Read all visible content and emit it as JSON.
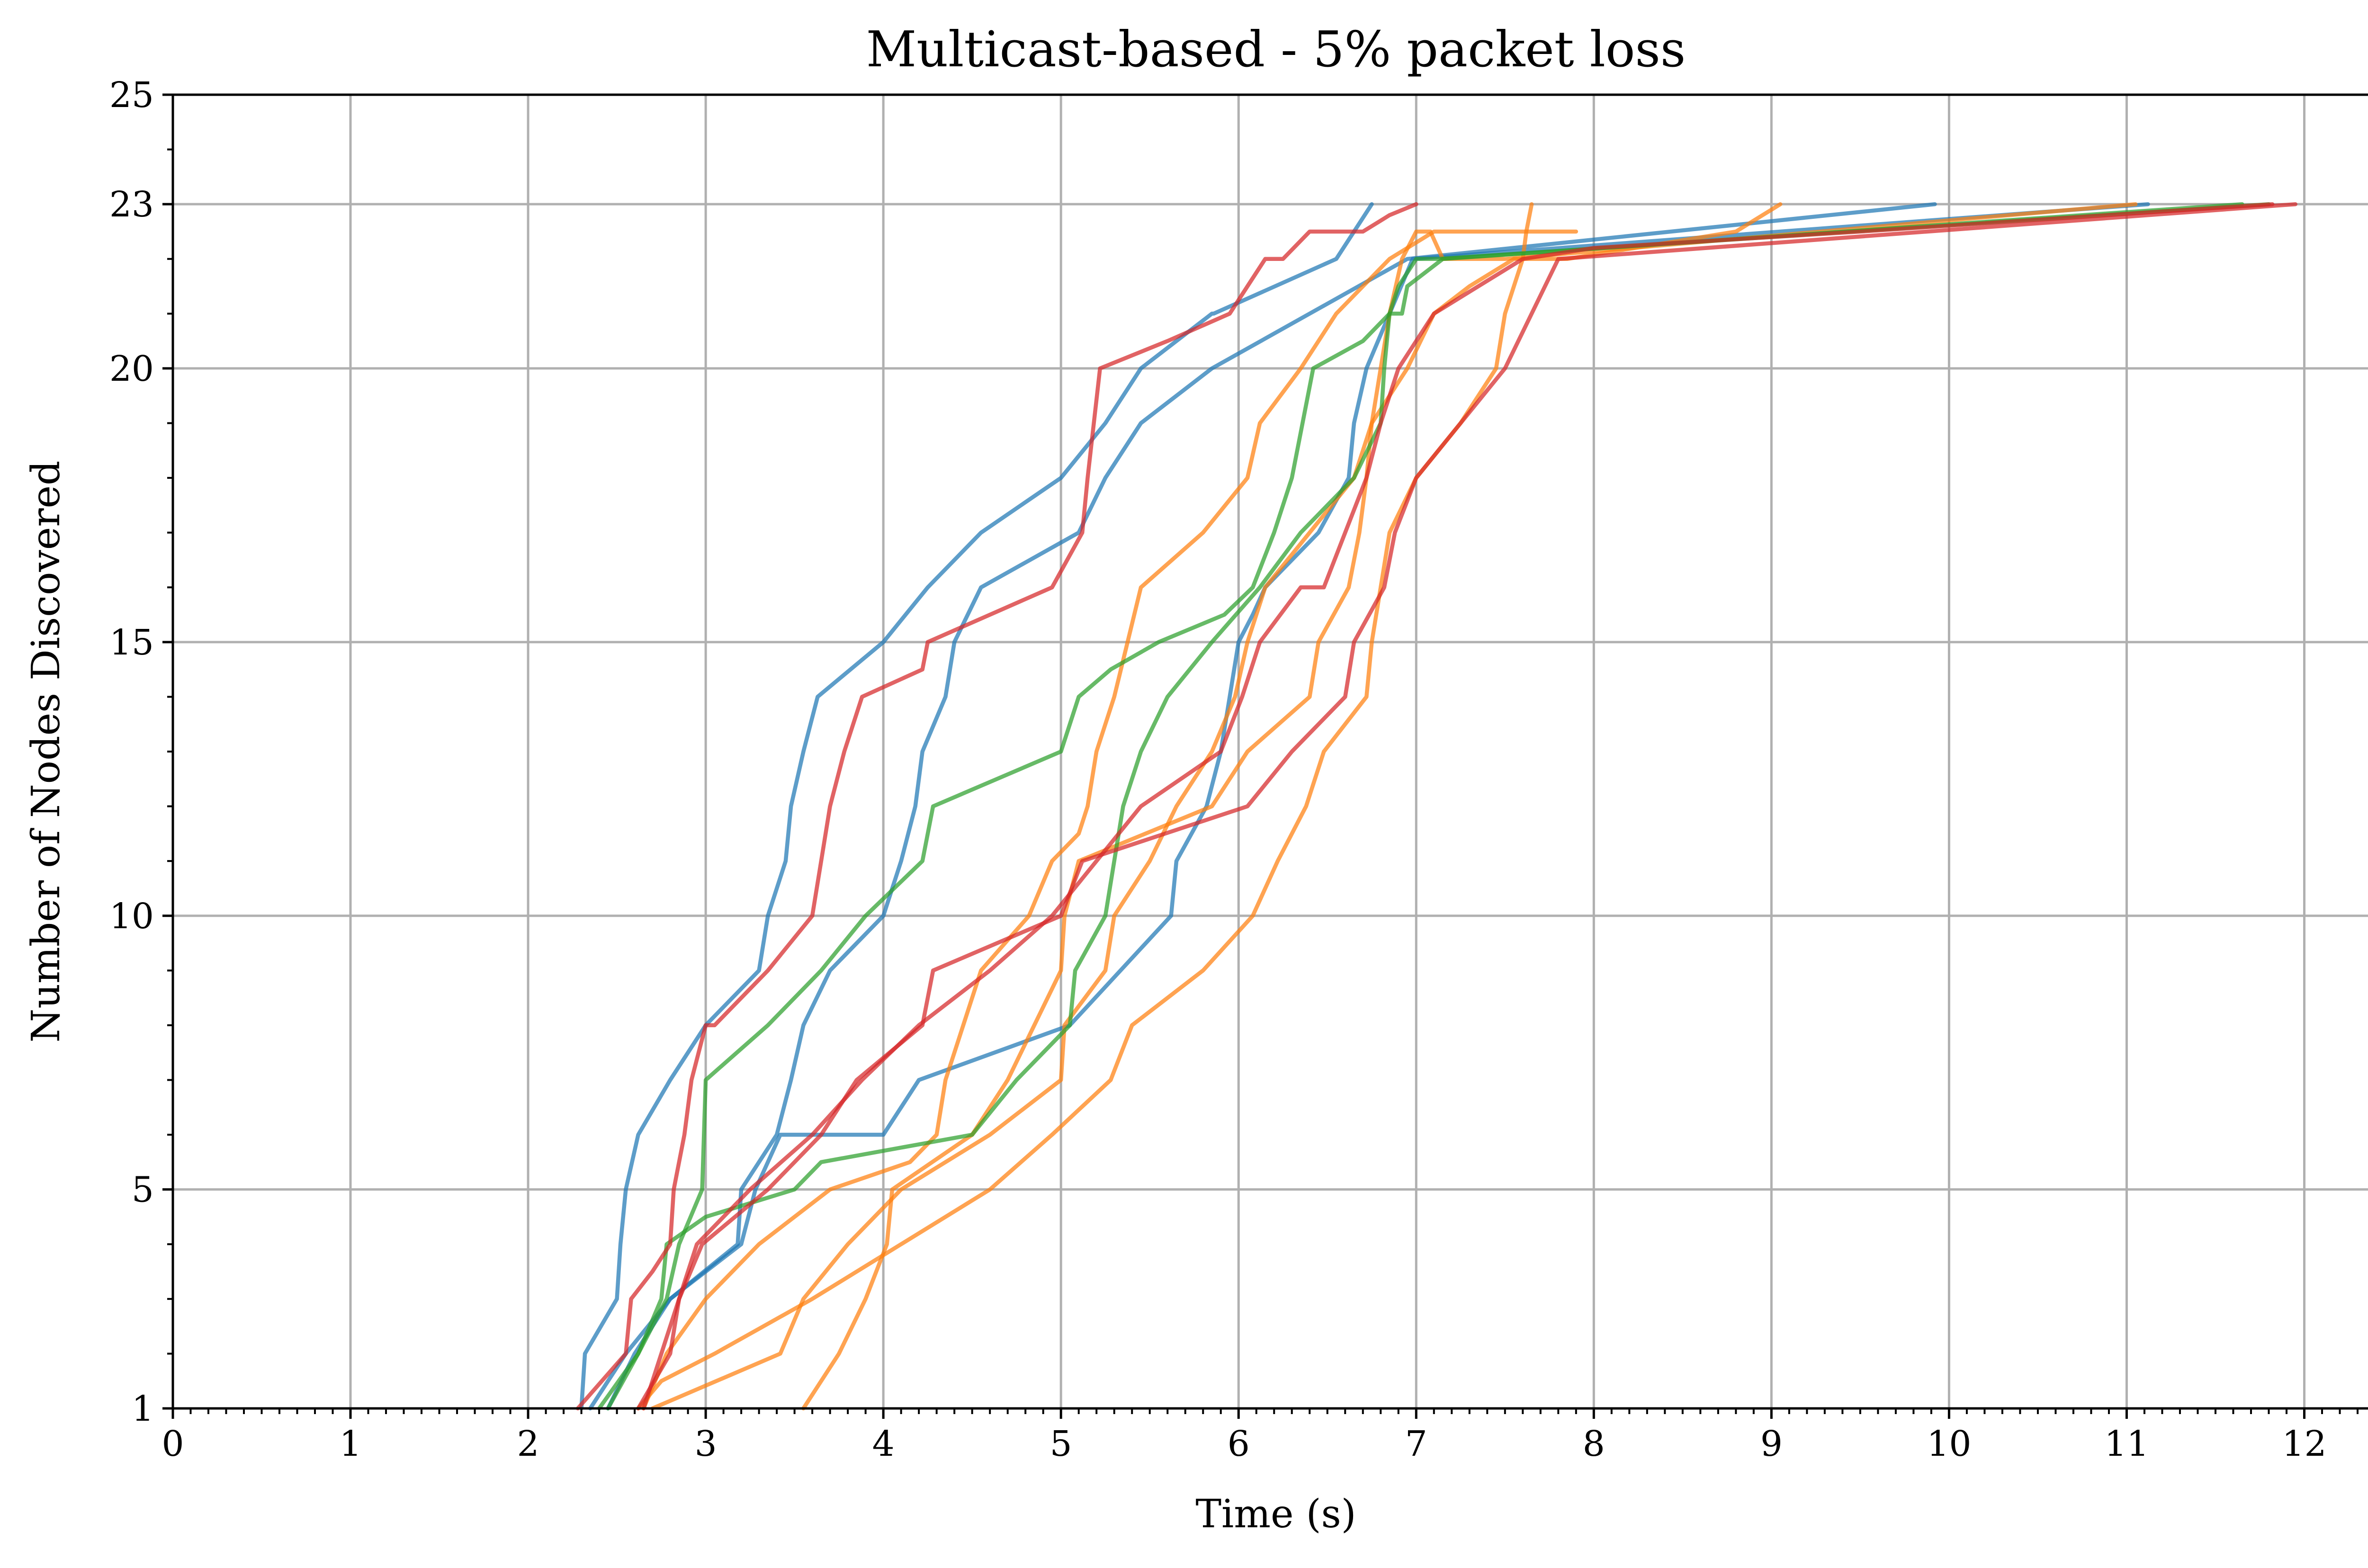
{
  "chart_data": {
    "type": "line",
    "title": "Multicast-based - 5% packet loss",
    "xlabel": "Time (s)",
    "ylabel": "Number of Nodes Discovered",
    "xlim": [
      0,
      12.42
    ],
    "ylim": [
      1,
      25
    ],
    "xticks": [
      "0",
      "1",
      "2",
      "3",
      "4",
      "5",
      "6",
      "7",
      "8",
      "9",
      "10",
      "11",
      "12"
    ],
    "yticks": [
      "1",
      "5",
      "10",
      "15",
      "20",
      "23",
      "25"
    ],
    "grid": true,
    "colors": {
      "blue": "#1f77b4",
      "orange": "#ff7f0e",
      "green": "#2ca02c",
      "red": "#d62728"
    },
    "series": [
      {
        "color": "blue",
        "x": [
          2.3,
          2.32,
          2.5,
          2.52,
          2.55,
          2.62,
          2.8,
          3.0,
          3.3,
          3.35,
          3.45,
          3.48,
          3.55,
          3.63,
          4.0,
          4.25,
          4.55,
          5.0,
          5.25,
          5.45,
          5.85,
          5.86,
          6.55,
          6.75
        ],
        "y": [
          1,
          2,
          3,
          4,
          5,
          6,
          7,
          8,
          9,
          10,
          11,
          12,
          13,
          14,
          15,
          16,
          17,
          18,
          19,
          20,
          21,
          21,
          22,
          23
        ]
      },
      {
        "color": "blue",
        "x": [
          2.45,
          2.6,
          2.8,
          3.18,
          3.2,
          3.4,
          3.48,
          3.55,
          3.7,
          4.0,
          4.1,
          4.18,
          4.22,
          4.35,
          4.4,
          4.55,
          5.1,
          5.25,
          5.45,
          5.85,
          6.95,
          9.92
        ],
        "y": [
          1,
          2,
          3,
          4,
          5,
          6,
          7,
          8,
          9,
          10,
          11,
          12,
          13,
          14,
          15,
          16,
          17,
          18,
          19,
          20,
          22,
          23
        ]
      },
      {
        "color": "blue",
        "x": [
          2.35,
          2.55,
          2.8,
          3.2,
          3.28,
          3.42,
          4.0,
          4.2,
          5.05,
          5.62,
          5.65,
          5.82,
          5.9,
          5.95,
          6.0,
          6.08,
          6.15,
          6.45,
          6.62,
          6.65,
          6.72,
          6.98,
          11.12
        ],
        "y": [
          1,
          2,
          3,
          4,
          5,
          6,
          6,
          7,
          8,
          10,
          11,
          12,
          13,
          14,
          15,
          15.5,
          16,
          17,
          18,
          19,
          20,
          22,
          23
        ]
      },
      {
        "color": "orange",
        "x": [
          2.7,
          3.42,
          3.55,
          3.8,
          4.1,
          4.6,
          5.0,
          5.02,
          5.25,
          5.3,
          5.5,
          5.65,
          5.85,
          5.98,
          6.05,
          6.15,
          6.4,
          6.65,
          6.75,
          6.95,
          7.1,
          7.3,
          7.55,
          7.85,
          8.8,
          9.05
        ],
        "y": [
          1,
          2,
          3,
          4,
          5,
          6,
          7,
          8,
          9,
          10,
          11,
          12,
          13,
          14,
          15,
          16,
          17,
          18,
          19,
          20,
          21,
          21.5,
          22,
          22,
          22.5,
          23
        ]
      },
      {
        "color": "orange",
        "x": [
          3.55,
          3.75,
          3.9,
          4.02,
          4.05,
          4.5,
          4.7,
          4.85,
          5.0,
          5.02,
          5.1,
          5.85,
          6.05,
          6.4,
          6.45,
          6.62,
          6.68,
          6.72,
          6.75,
          6.8,
          6.85,
          6.92,
          7.0,
          7.08,
          7.15,
          7.5,
          11.05
        ],
        "y": [
          1,
          2,
          3,
          4,
          5,
          6,
          7,
          8,
          9,
          10,
          11,
          12,
          13,
          14,
          15,
          16,
          17,
          18,
          19,
          20,
          21,
          22,
          22.5,
          22.5,
          22,
          22,
          23
        ]
      },
      {
        "color": "orange",
        "x": [
          2.65,
          2.78,
          3.0,
          3.3,
          3.7,
          4.15,
          4.3,
          4.35,
          4.45,
          4.55,
          4.82,
          4.95,
          5.1,
          5.15,
          5.2,
          5.3,
          5.45,
          5.8,
          6.05,
          6.12,
          6.35,
          6.55,
          6.85,
          7.1,
          7.65,
          7.7,
          7.9
        ],
        "y": [
          1,
          2,
          3,
          4,
          5,
          5.5,
          6,
          7,
          8,
          9,
          10,
          11,
          11.5,
          12,
          13,
          14,
          16,
          17,
          18,
          19,
          20,
          21,
          22,
          22.5,
          22.5,
          22.5,
          22.5
        ]
      },
      {
        "color": "orange",
        "x": [
          2.62,
          2.75,
          3.05,
          3.6,
          4.1,
          4.6,
          4.95,
          5.28,
          5.4,
          5.8,
          6.08,
          6.22,
          6.38,
          6.48,
          6.72,
          6.75,
          6.8,
          6.85,
          7.0,
          7.25,
          7.45,
          7.5,
          7.6,
          7.62,
          7.62,
          7.65
        ],
        "y": [
          1,
          1.5,
          2,
          3,
          4,
          5,
          6,
          7,
          8,
          9,
          10,
          11,
          12,
          13,
          14,
          15,
          16,
          17,
          18,
          19,
          20,
          21,
          22,
          22.5,
          22.5,
          23
        ]
      },
      {
        "color": "green",
        "x": [
          2.4,
          2.62,
          2.78,
          2.85,
          2.98,
          3.0,
          3.35,
          3.65,
          3.9,
          4.22,
          4.28,
          5.0,
          5.1,
          5.28,
          5.55,
          5.92,
          6.08,
          6.2,
          6.3,
          6.42,
          6.7,
          6.85,
          6.88,
          6.92,
          6.95,
          7.15,
          11.65
        ],
        "y": [
          1,
          2,
          3,
          4,
          5,
          7,
          8,
          9,
          10,
          11,
          12,
          13,
          14,
          14.5,
          15,
          15.5,
          16,
          17,
          18,
          20,
          20.5,
          21,
          21,
          21,
          21.5,
          22,
          23
        ]
      },
      {
        "color": "green",
        "x": [
          2.45,
          2.62,
          2.75,
          2.78,
          3.0,
          3.5,
          3.65,
          4.5,
          4.75,
          5.05,
          5.08,
          5.25,
          5.3,
          5.35,
          5.45,
          5.6,
          5.85,
          6.12,
          6.35,
          6.65,
          6.8,
          6.82,
          6.85,
          6.9,
          7.0,
          7.12,
          11.8
        ],
        "y": [
          1,
          2,
          3,
          4,
          4.5,
          5,
          5.5,
          6,
          7,
          8,
          9,
          10,
          11,
          12,
          13,
          14,
          15,
          16,
          17,
          18,
          19,
          20,
          21,
          21.5,
          22,
          22,
          23
        ]
      },
      {
        "color": "red",
        "x": [
          2.28,
          2.55,
          2.58,
          2.7,
          2.8,
          2.82,
          2.88,
          2.92,
          3.0,
          3.05,
          3.35,
          3.6,
          3.65,
          3.7,
          3.78,
          3.88,
          4.22,
          4.25,
          4.95,
          5.12,
          5.15,
          5.22,
          5.6,
          5.95,
          6.05,
          6.15,
          6.25,
          6.4,
          6.7,
          6.85,
          7.0
        ],
        "y": [
          1,
          2,
          3,
          3.5,
          4,
          5,
          6,
          7,
          8,
          8,
          9,
          10,
          11,
          12,
          13,
          14,
          14.5,
          15,
          16,
          17,
          18,
          20,
          20.5,
          21,
          21.5,
          22,
          22,
          22.5,
          22.5,
          22.8,
          23
        ]
      },
      {
        "color": "red",
        "x": [
          2.65,
          2.75,
          2.85,
          2.98,
          3.35,
          3.65,
          3.85,
          4.22,
          4.28,
          5.0,
          5.12,
          6.05,
          6.3,
          6.6,
          6.65,
          6.82,
          6.88,
          7.0,
          7.25,
          7.5,
          7.8,
          11.95
        ],
        "y": [
          1,
          2,
          3,
          4,
          5,
          6,
          7,
          8,
          9,
          10,
          11,
          12,
          13,
          14,
          15,
          16,
          17,
          18,
          19,
          20,
          22,
          23
        ]
      },
      {
        "color": "red",
        "x": [
          2.62,
          2.8,
          2.85,
          2.95,
          3.25,
          3.6,
          3.88,
          4.2,
          4.6,
          4.95,
          5.2,
          5.45,
          5.9,
          6.02,
          6.12,
          6.35,
          6.48,
          6.6,
          6.72,
          6.8,
          6.9,
          7.1,
          7.35,
          7.6,
          8.0,
          9.5,
          11.82
        ],
        "y": [
          1,
          2,
          3,
          4,
          5,
          6,
          7,
          8,
          9,
          10,
          11,
          12,
          13,
          14,
          15,
          16,
          16,
          17,
          18,
          19,
          20,
          21,
          21.5,
          22,
          22.2,
          22.5,
          23
        ]
      }
    ]
  }
}
